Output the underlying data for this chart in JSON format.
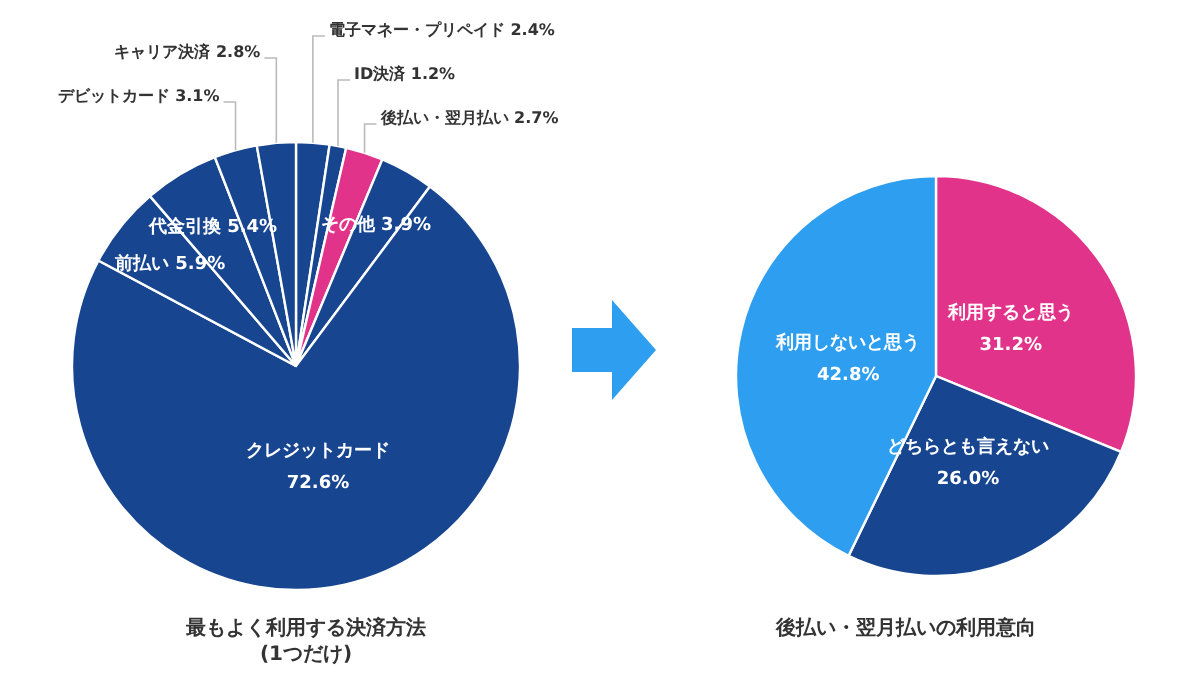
{
  "chart_data": [
    {
      "type": "pie",
      "title": "最もよく利用する決済方法\n(1つだけ)",
      "categories": [
        "電子マネー・プリペイド",
        "ID決済",
        "後払い・翌月払い",
        "その他",
        "クレジットカード",
        "前払い",
        "代金引換",
        "デビットカード",
        "キャリア決済"
      ],
      "values": [
        2.4,
        1.2,
        2.7,
        3.9,
        72.6,
        5.9,
        5.4,
        3.1,
        2.8
      ],
      "colors": [
        "#17458f",
        "#17458f",
        "#e2338a",
        "#17458f",
        "#17458f",
        "#17458f",
        "#17458f",
        "#17458f",
        "#17458f"
      ],
      "value_labels": [
        "2.4%",
        "1.2%",
        "2.7%",
        "3.9%",
        "72.6%",
        "5.9%",
        "5.4%",
        "3.1%",
        "2.8%"
      ]
    },
    {
      "type": "pie",
      "title": "後払い・翌月払いの利用意向",
      "categories": [
        "利用すると思う",
        "どちらとも言えない",
        "利用しないと思う"
      ],
      "values": [
        31.2,
        26.0,
        42.8
      ],
      "colors": [
        "#e2338a",
        "#17458f",
        "#2e9ef0"
      ],
      "value_labels": [
        "31.2%",
        "26.0%",
        "42.8%"
      ]
    }
  ]
}
